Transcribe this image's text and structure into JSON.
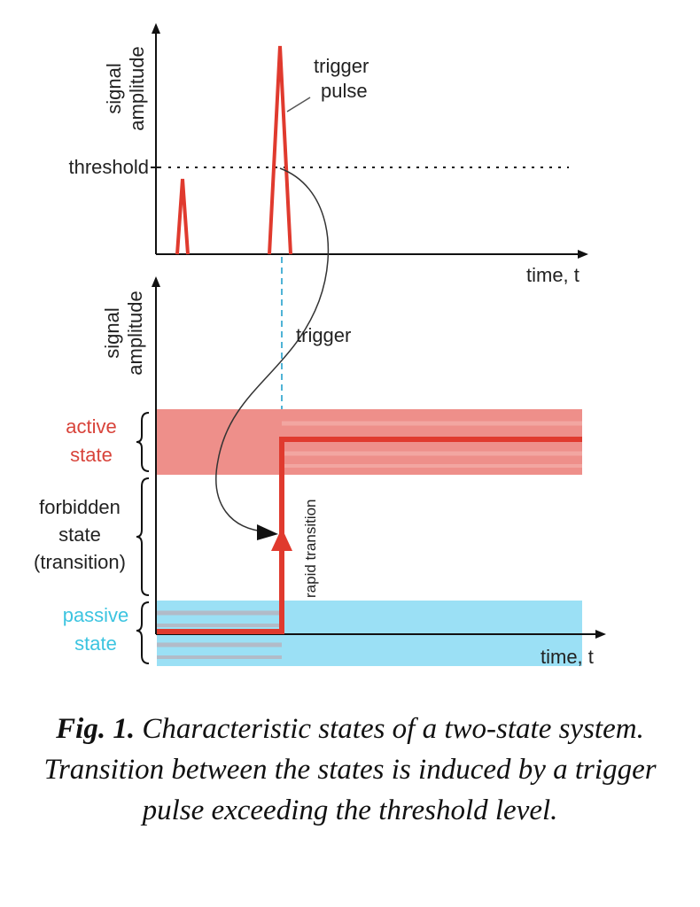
{
  "top_panel": {
    "y_axis_label": [
      "signal",
      "amplitude"
    ],
    "x_axis_label": "time, t",
    "threshold_label": "threshold",
    "pulse_label": [
      "trigger",
      "pulse"
    ]
  },
  "bottom_panel": {
    "y_axis_label": [
      "signal",
      "amplitude"
    ],
    "x_axis_label": "time, t",
    "trigger_label": "trigger",
    "transition_label": "rapid transition",
    "states": {
      "active": [
        "active",
        "state"
      ],
      "forbidden": [
        "forbidden",
        "state",
        "(transition)"
      ],
      "passive": [
        "passive",
        "state"
      ]
    }
  },
  "colors": {
    "signal": "#e03a2e",
    "active_band": "#ee8f8a",
    "passive_band": "#9be0f5",
    "active_text": "#d8433a",
    "passive_text": "#3cc4e0",
    "trigger_line": "#4fb3d6"
  },
  "caption": {
    "label": "Fig. 1.",
    "text": "Characteristic states of a two-state system. Transition between the states is induced by a trigger pulse exceeding the threshold level."
  }
}
